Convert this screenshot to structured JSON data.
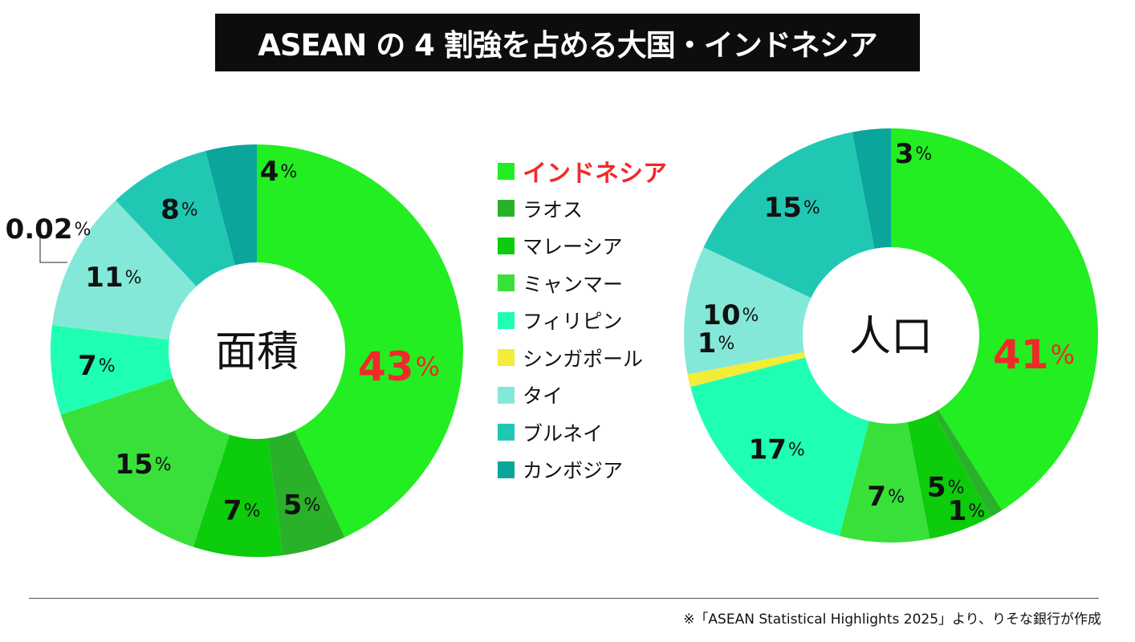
{
  "title": "ASEAN の 4 割強を占める大国・インドネシア",
  "footnote": "※「ASEAN Statistical Highlights 2025」より、りそな銀行が作成",
  "legend": [
    {
      "label": "インドネシア",
      "color": "#22ee22"
    },
    {
      "label": "ラオス",
      "color": "#2ab12a"
    },
    {
      "label": "マレーシア",
      "color": "#0ccc0c"
    },
    {
      "label": "ミャンマー",
      "color": "#3ae03a"
    },
    {
      "label": "フィリピン",
      "color": "#1effb4"
    },
    {
      "label": "シンガポール",
      "color": "#f4ec36"
    },
    {
      "label": "タイ",
      "color": "#84e8d8"
    },
    {
      "label": "ブルネイ",
      "color": "#20c8b4"
    },
    {
      "label": "カンボジア",
      "color": "#0ca59c"
    }
  ],
  "chart_data": [
    {
      "type": "pie",
      "center_label": "面積",
      "unit": "%",
      "slices": [
        {
          "name": "インドネシア",
          "value": 43,
          "label": "43"
        },
        {
          "name": "ラオス",
          "value": 5,
          "label": "5"
        },
        {
          "name": "マレーシア",
          "value": 7,
          "label": "7"
        },
        {
          "name": "ミャンマー",
          "value": 15,
          "label": "15"
        },
        {
          "name": "フィリピン",
          "value": 7,
          "label": "7"
        },
        {
          "name": "シンガポール",
          "value": 0.02,
          "label": "0.02"
        },
        {
          "name": "タイ",
          "value": 11,
          "label": "11"
        },
        {
          "name": "ブルネイ",
          "value": 8,
          "label": "8"
        },
        {
          "name": "カンボジア",
          "value": 4,
          "label": "4"
        }
      ]
    },
    {
      "type": "pie",
      "center_label": "人口",
      "unit": "%",
      "slices": [
        {
          "name": "インドネシア",
          "value": 41,
          "label": "41"
        },
        {
          "name": "ラオス",
          "value": 1,
          "label": "1"
        },
        {
          "name": "マレーシア",
          "value": 5,
          "label": "5"
        },
        {
          "name": "ミャンマー",
          "value": 7,
          "label": "7"
        },
        {
          "name": "フィリピン",
          "value": 17,
          "label": "17"
        },
        {
          "name": "シンガポール",
          "value": 1,
          "label": "1"
        },
        {
          "name": "タイ",
          "value": 10,
          "label": "10"
        },
        {
          "name": "ブルネイ",
          "value": 15,
          "label": "15"
        },
        {
          "name": "カンボジア",
          "value": 3,
          "label": "3"
        }
      ]
    }
  ]
}
